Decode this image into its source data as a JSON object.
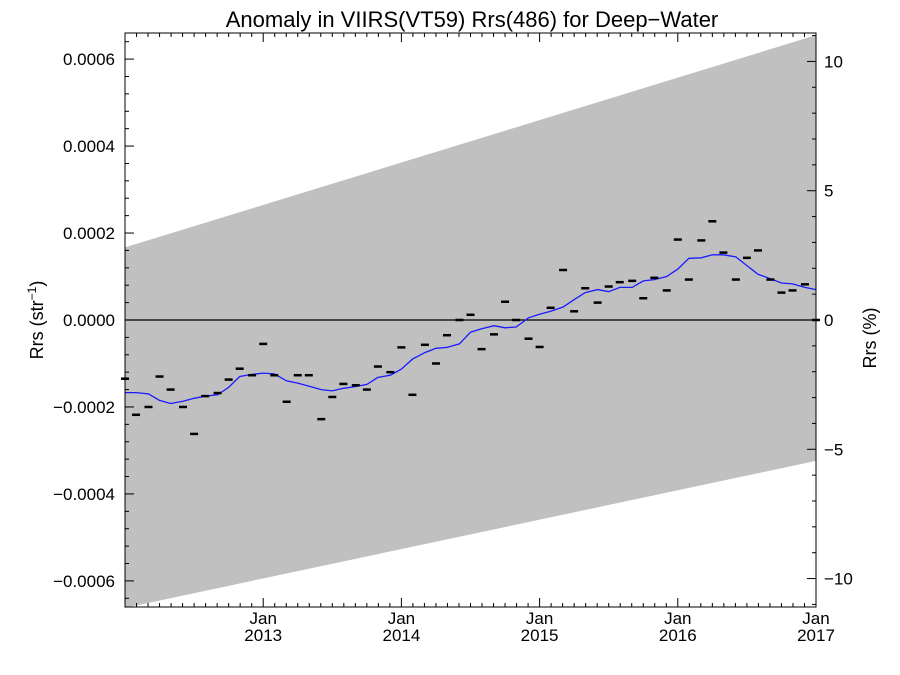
{
  "chart_data": {
    "type": "line",
    "title": "Anomaly in VIIRS(VT59) Rrs(486) for Deep−Water",
    "ylabel_left": {
      "text": "Rrs (str",
      "superscript": "−1",
      "suffix": ")"
    },
    "ylabel_right": "Rrs (%)",
    "xlim": [
      2012.0,
      2017.0
    ],
    "ylim_left": [
      -0.00066,
      0.00066
    ],
    "ylim_right": [
      -11.1,
      11.1
    ],
    "grid": false,
    "x_ticks": [
      {
        "value": 2013,
        "label_top": "Jan",
        "label_bottom": "2013"
      },
      {
        "value": 2014,
        "label_top": "Jan",
        "label_bottom": "2014"
      },
      {
        "value": 2015,
        "label_top": "Jan",
        "label_bottom": "2015"
      },
      {
        "value": 2016,
        "label_top": "Jan",
        "label_bottom": "2016"
      },
      {
        "value": 2017,
        "label_top": "Jan",
        "label_bottom": "2017"
      }
    ],
    "y_ticks_left": [
      {
        "value": 0.0006,
        "label": "0.0006"
      },
      {
        "value": 0.0004,
        "label": "0.0004"
      },
      {
        "value": 0.0002,
        "label": "0.0002"
      },
      {
        "value": 0.0,
        "label": "0.0000"
      },
      {
        "value": -0.0002,
        "label": "−0.0002"
      },
      {
        "value": -0.0004,
        "label": "−0.0004"
      },
      {
        "value": -0.0006,
        "label": "−0.0006"
      }
    ],
    "y_ticks_right": [
      {
        "value": 10,
        "label": "10"
      },
      {
        "value": 5,
        "label": "5"
      },
      {
        "value": 0,
        "label": "0"
      },
      {
        "value": -5,
        "label": "−5"
      },
      {
        "value": -10,
        "label": "−10"
      }
    ],
    "uncertainty_band": {
      "x": [
        2012.0,
        2017.0
      ],
      "upper": [
        0.000167,
        0.000655
      ],
      "lower": [
        -0.000662,
        -0.000324
      ],
      "color": "#c0c0c0"
    },
    "zero_line": 0.0,
    "series": [
      {
        "kind": "monthly_points",
        "color": "#000000",
        "x": [
          2012.0,
          2012.08,
          2012.17,
          2012.25,
          2012.33,
          2012.42,
          2012.5,
          2012.58,
          2012.67,
          2012.75,
          2012.83,
          2012.92,
          2013.0,
          2013.08,
          2013.17,
          2013.25,
          2013.33,
          2013.42,
          2013.5,
          2013.58,
          2013.67,
          2013.75,
          2013.83,
          2013.92,
          2014.0,
          2014.08,
          2014.17,
          2014.25,
          2014.33,
          2014.42,
          2014.5,
          2014.58,
          2014.67,
          2014.75,
          2014.83,
          2014.92,
          2015.0,
          2015.08,
          2015.17,
          2015.25,
          2015.33,
          2015.42,
          2015.5,
          2015.58,
          2015.67,
          2015.75,
          2015.83,
          2015.92,
          2016.0,
          2016.08,
          2016.17,
          2016.25,
          2016.33,
          2016.42,
          2016.5,
          2016.58,
          2016.67,
          2016.75,
          2016.83,
          2016.92,
          2017.0
        ],
        "y": [
          -0.000135,
          -0.000218,
          -0.0002,
          -0.00013,
          -0.00016,
          -0.0002,
          -0.000262,
          -0.000175,
          -0.000168,
          -0.000137,
          -0.000112,
          -0.000127,
          -5.5e-05,
          -0.000127,
          -0.000188,
          -0.000127,
          -0.000127,
          -0.000228,
          -0.000177,
          -0.000147,
          -0.00015,
          -0.00016,
          -0.000107,
          -0.00012,
          -6.3e-05,
          -0.000172,
          -5.7e-05,
          -0.0001,
          -3.5e-05,
          0.0,
          1.2e-05,
          -6.7e-05,
          -3.3e-05,
          4.2e-05,
          0.0,
          -4.3e-05,
          -6.2e-05,
          2.8e-05,
          0.000115,
          2e-05,
          7.3e-05,
          4e-05,
          7.7e-05,
          8.7e-05,
          9e-05,
          5e-05,
          9.7e-05,
          6.8e-05,
          0.000185,
          9.3e-05,
          0.000183,
          0.000227,
          0.000155,
          9.3e-05,
          0.000143,
          0.00016,
          9.3e-05,
          6.3e-05,
          6.8e-05,
          8.2e-05,
          0.0
        ]
      },
      {
        "kind": "running_mean",
        "color": "#1a1aff",
        "x": [
          2012.0,
          2012.08,
          2012.17,
          2012.25,
          2012.33,
          2012.42,
          2012.5,
          2012.58,
          2012.67,
          2012.75,
          2012.83,
          2012.92,
          2013.0,
          2013.08,
          2013.17,
          2013.25,
          2013.33,
          2013.42,
          2013.5,
          2013.58,
          2013.67,
          2013.75,
          2013.83,
          2013.92,
          2014.0,
          2014.08,
          2014.17,
          2014.25,
          2014.33,
          2014.42,
          2014.5,
          2014.58,
          2014.67,
          2014.75,
          2014.83,
          2014.92,
          2015.0,
          2015.08,
          2015.17,
          2015.25,
          2015.33,
          2015.42,
          2015.5,
          2015.58,
          2015.67,
          2015.75,
          2015.83,
          2015.92,
          2016.0,
          2016.08,
          2016.17,
          2016.25,
          2016.33,
          2016.42,
          2016.5,
          2016.58,
          2016.67,
          2016.75,
          2016.83,
          2016.92,
          2017.0
        ],
        "y": [
          -0.000167,
          -0.000167,
          -0.00017,
          -0.000185,
          -0.000192,
          -0.000187,
          -0.00018,
          -0.000175,
          -0.000172,
          -0.000155,
          -0.00013,
          -0.000125,
          -0.000122,
          -0.000124,
          -0.00014,
          -0.000145,
          -0.000152,
          -0.00016,
          -0.000163,
          -0.000157,
          -0.000153,
          -0.000148,
          -0.000132,
          -0.000127,
          -0.000113,
          -9e-05,
          -7.5e-05,
          -6.5e-05,
          -6.3e-05,
          -5.5e-05,
          -2.8e-05,
          -2e-05,
          -1.3e-05,
          -1.8e-05,
          -1.6e-05,
          5e-06,
          1.3e-05,
          2e-05,
          3e-05,
          4.7e-05,
          6.3e-05,
          7e-05,
          6.5e-05,
          7.5e-05,
          7.5e-05,
          9e-05,
          9.3e-05,
          0.0001,
          0.000117,
          0.000142,
          0.000143,
          0.00015,
          0.00015,
          0.000145,
          0.000125,
          0.000105,
          9.5e-05,
          8.5e-05,
          8.3e-05,
          7.5e-05,
          7e-05
        ]
      }
    ]
  }
}
